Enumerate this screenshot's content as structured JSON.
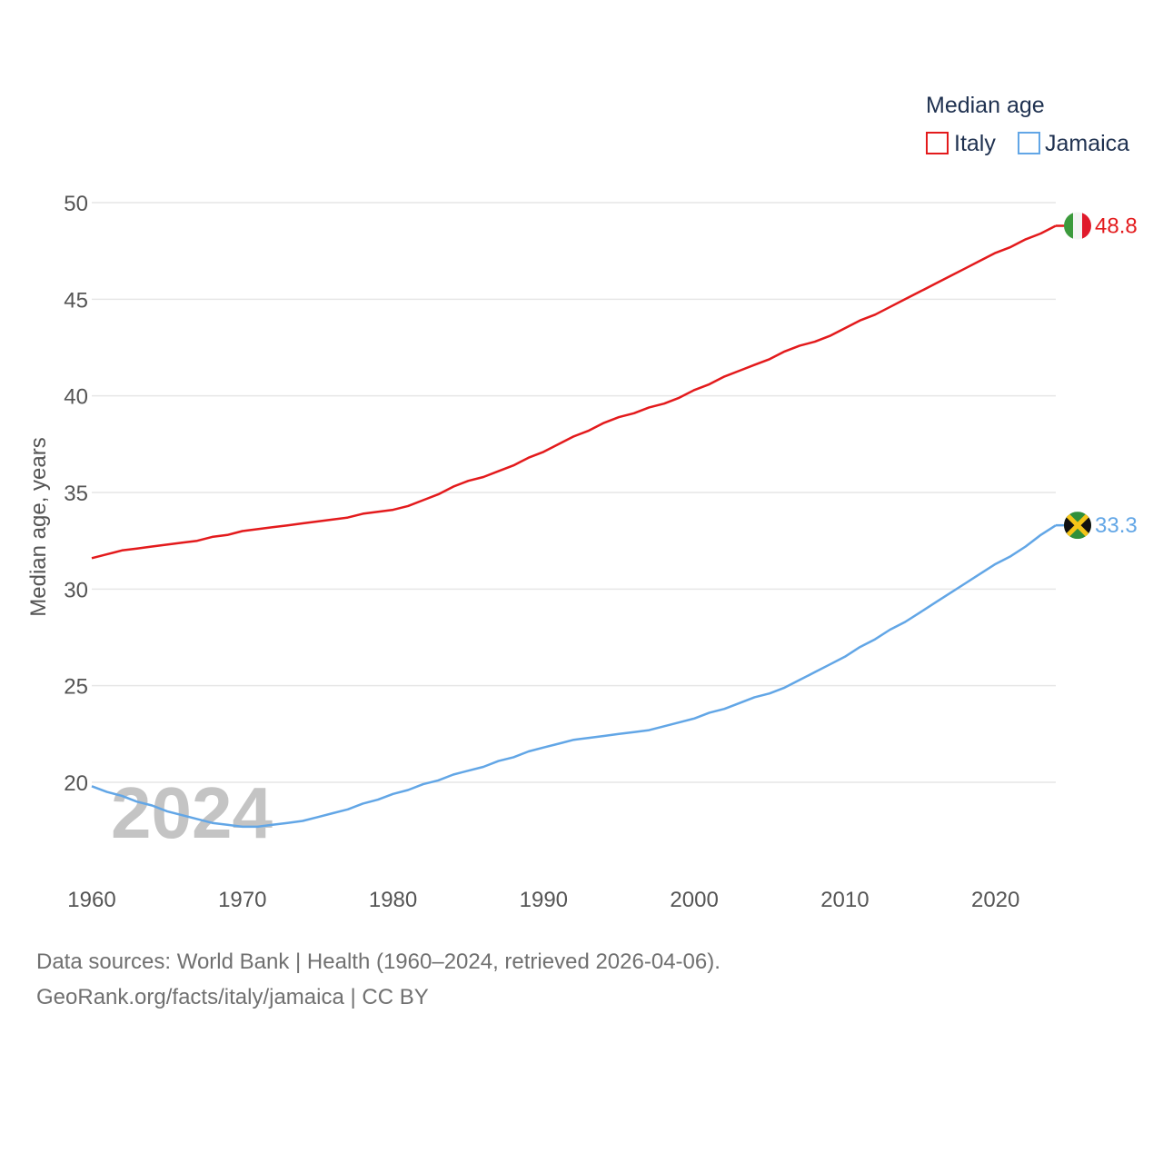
{
  "chart_data": {
    "type": "line",
    "ylabel": "Median age, years",
    "xlim": [
      1960,
      2024
    ],
    "ylim": [
      16,
      51
    ],
    "x_ticks": [
      1960,
      1970,
      1980,
      1990,
      2000,
      2010,
      2020
    ],
    "y_ticks": [
      20,
      25,
      30,
      35,
      40,
      45,
      50
    ],
    "grid": true,
    "legend_title": "Median age",
    "legend_position": "top-right",
    "current_year_label": "2024",
    "x": [
      1960,
      1961,
      1962,
      1963,
      1964,
      1965,
      1966,
      1967,
      1968,
      1969,
      1970,
      1971,
      1972,
      1973,
      1974,
      1975,
      1976,
      1977,
      1978,
      1979,
      1980,
      1981,
      1982,
      1983,
      1984,
      1985,
      1986,
      1987,
      1988,
      1989,
      1990,
      1991,
      1992,
      1993,
      1994,
      1995,
      1996,
      1997,
      1998,
      1999,
      2000,
      2001,
      2002,
      2003,
      2004,
      2005,
      2006,
      2007,
      2008,
      2009,
      2010,
      2011,
      2012,
      2013,
      2014,
      2015,
      2016,
      2017,
      2018,
      2019,
      2020,
      2021,
      2022,
      2023,
      2024
    ],
    "series": [
      {
        "name": "Italy",
        "color": "#e31a1c",
        "end_label": "48.8",
        "flag": "italy-flag",
        "values": [
          31.6,
          31.8,
          32.0,
          32.1,
          32.2,
          32.3,
          32.4,
          32.5,
          32.7,
          32.8,
          33.0,
          33.1,
          33.2,
          33.3,
          33.4,
          33.5,
          33.6,
          33.7,
          33.9,
          34.0,
          34.1,
          34.3,
          34.6,
          34.9,
          35.3,
          35.6,
          35.8,
          36.1,
          36.4,
          36.8,
          37.1,
          37.5,
          37.9,
          38.2,
          38.6,
          38.9,
          39.1,
          39.4,
          39.6,
          39.9,
          40.3,
          40.6,
          41.0,
          41.3,
          41.6,
          41.9,
          42.3,
          42.6,
          42.8,
          43.1,
          43.5,
          43.9,
          44.2,
          44.6,
          45.0,
          45.4,
          45.8,
          46.2,
          46.6,
          47.0,
          47.4,
          47.7,
          48.1,
          48.4,
          48.8
        ]
      },
      {
        "name": "Jamaica",
        "color": "#62a6e6",
        "end_label": "33.3",
        "flag": "jamaica-flag",
        "values": [
          19.8,
          19.5,
          19.3,
          19.0,
          18.8,
          18.5,
          18.3,
          18.1,
          17.9,
          17.8,
          17.7,
          17.7,
          17.8,
          17.9,
          18.0,
          18.2,
          18.4,
          18.6,
          18.9,
          19.1,
          19.4,
          19.6,
          19.9,
          20.1,
          20.4,
          20.6,
          20.8,
          21.1,
          21.3,
          21.6,
          21.8,
          22.0,
          22.2,
          22.3,
          22.4,
          22.5,
          22.6,
          22.7,
          22.9,
          23.1,
          23.3,
          23.6,
          23.8,
          24.1,
          24.4,
          24.6,
          24.9,
          25.3,
          25.7,
          26.1,
          26.5,
          27.0,
          27.4,
          27.9,
          28.3,
          28.8,
          29.3,
          29.8,
          30.3,
          30.8,
          31.3,
          31.7,
          32.2,
          32.8,
          33.3
        ]
      }
    ]
  },
  "source": {
    "line1": "Data sources: World Bank | Health (1960–2024, retrieved 2026-04-06).",
    "line2": "GeoRank.org/facts/italy/jamaica | CC BY"
  }
}
